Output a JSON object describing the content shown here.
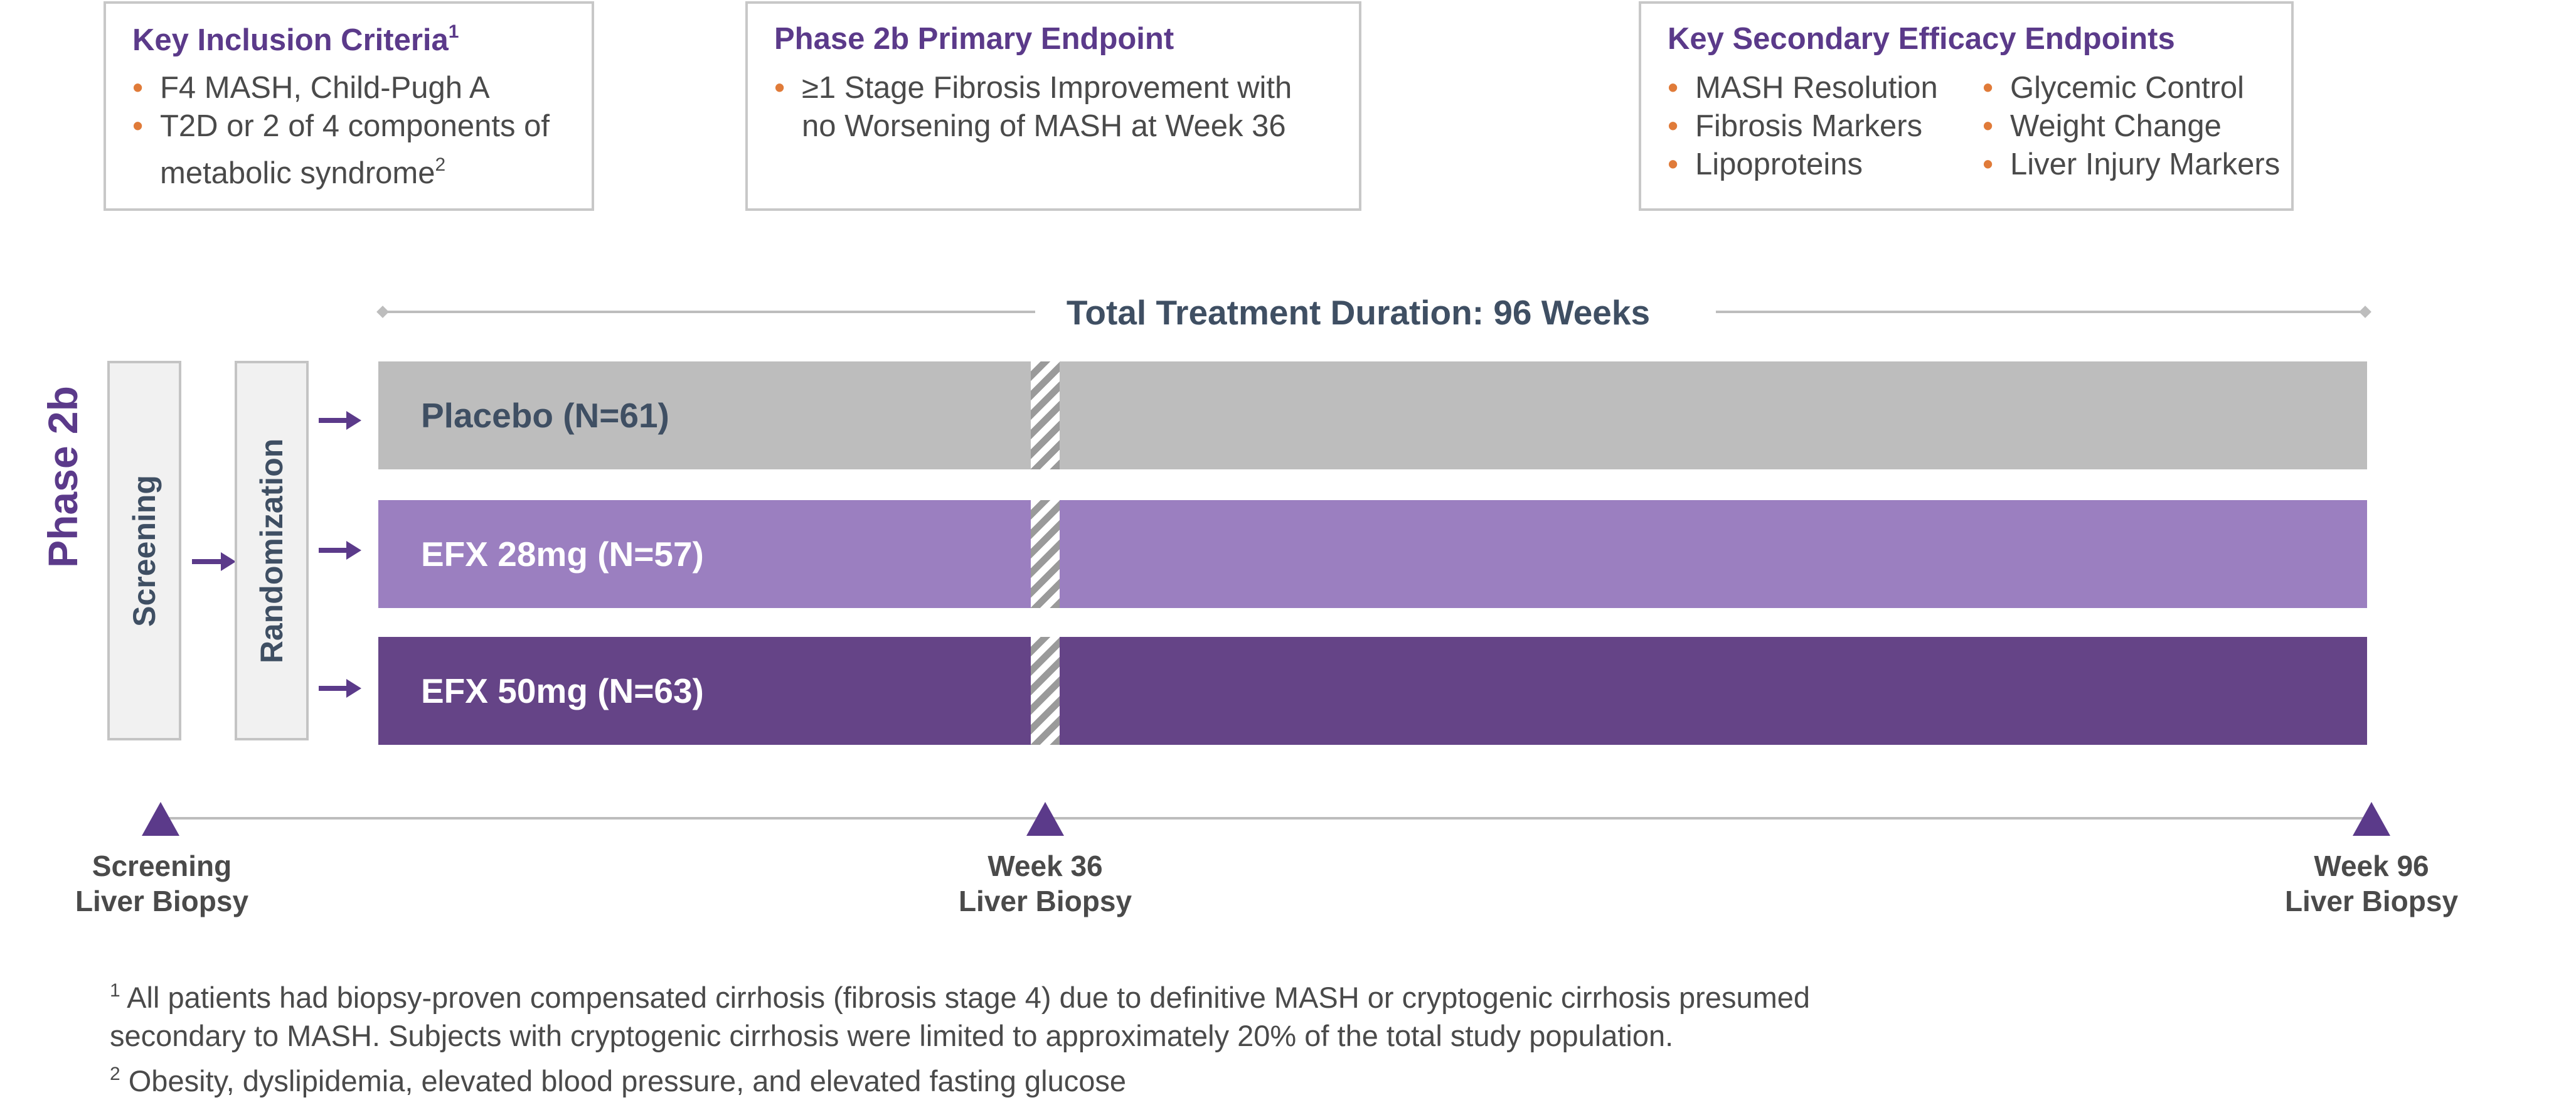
{
  "boxes": {
    "inclusion": {
      "title": "Key Inclusion Criteria",
      "title_sup": "1",
      "items": [
        "F4 MASH, Child-Pugh A",
        "T2D or 2 of 4 components of",
        "metabolic syndrome"
      ],
      "item3_sup": "2"
    },
    "primary": {
      "title": "Phase 2b Primary Endpoint",
      "items": [
        "≥1 Stage Fibrosis Improvement with",
        "no Worsening of MASH at Week 36"
      ]
    },
    "secondary": {
      "title": "Key Secondary Efficacy Endpoints",
      "col1": [
        "MASH Resolution",
        "Fibrosis Markers",
        "Lipoproteins"
      ],
      "col2": [
        "Glycemic Control",
        "Weight Change",
        "Liver Injury Markers"
      ]
    }
  },
  "duration_label": "Total Treatment Duration: 96 Weeks",
  "phase_label": "Phase 2b",
  "screening_label": "Screening",
  "randomization_label": "Randomization",
  "arms": [
    {
      "label": "Placebo (N=61)",
      "color": "#bdbdbd",
      "text_color": "#3f4f63"
    },
    {
      "label": "EFX 28mg (N=57)",
      "color": "#9b7fc0",
      "text_color": "#ffffff"
    },
    {
      "label": "EFX 50mg (N=63)",
      "color": "#654487",
      "text_color": "#ffffff"
    }
  ],
  "milestones": [
    {
      "line1": "Screening",
      "line2": "Liver Biopsy"
    },
    {
      "line1": "Week 36",
      "line2": "Liver Biopsy"
    },
    {
      "line1": "Week 96",
      "line2": "Liver Biopsy"
    }
  ],
  "footnotes": {
    "fn1_mark": "1",
    "fn1_line1": "All patients had biopsy-proven compensated cirrhosis (fibrosis stage 4) due to definitive MASH or cryptogenic cirrhosis presumed",
    "fn1_line2": "secondary to MASH. Subjects with cryptogenic cirrhosis were limited to approximately 20% of the total study population.",
    "fn2_mark": "2",
    "fn2_text": "Obesity, dyslipidemia, elevated blood pressure, and elevated fasting glucose"
  },
  "colors": {
    "accent": "#5b3a8a",
    "bullet": "#e07b39",
    "border": "#c8c8c8"
  }
}
